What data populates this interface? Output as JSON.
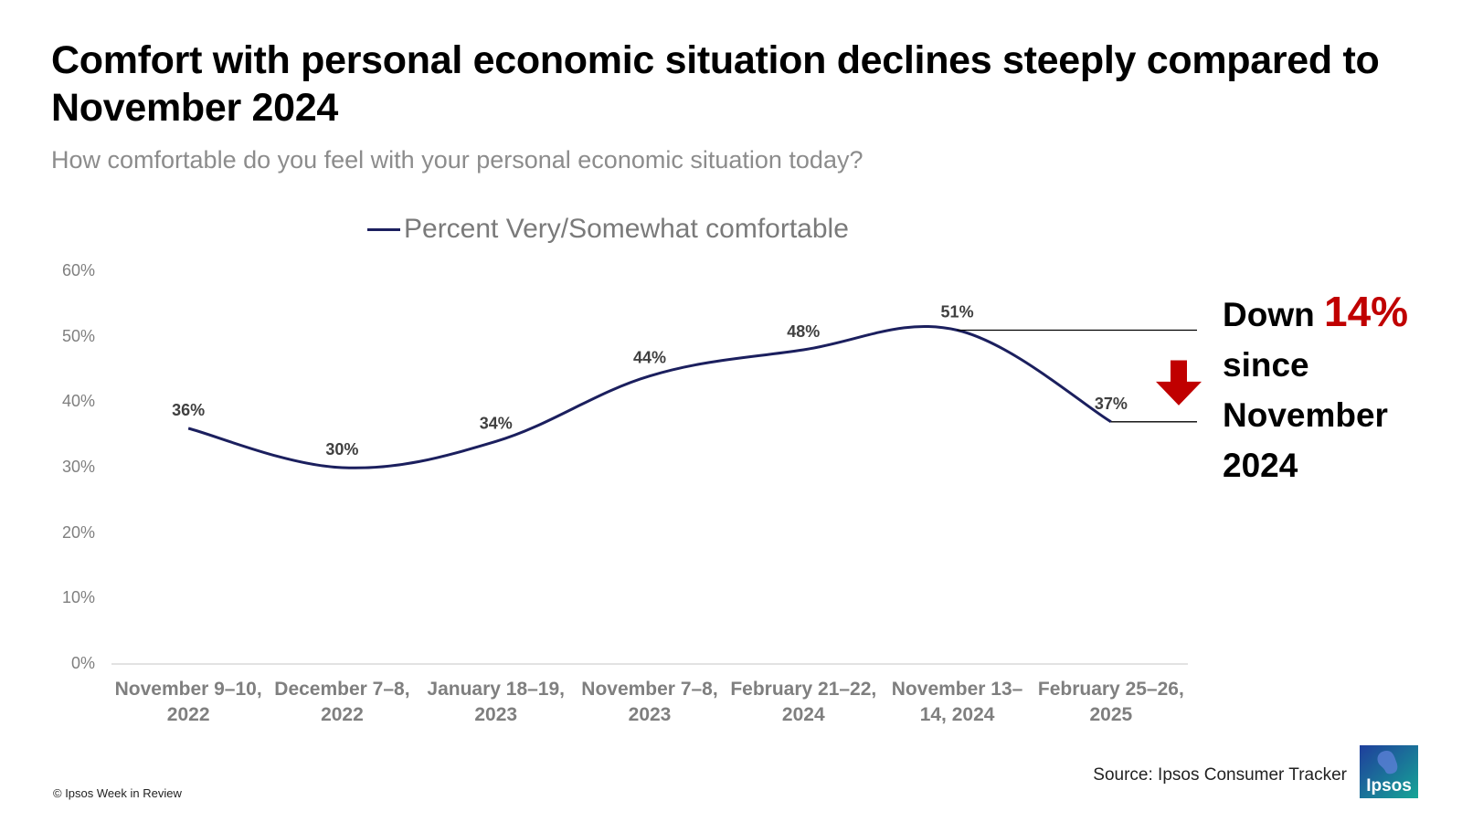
{
  "title": "Comfort with personal economic situation declines steeply compared to November 2024",
  "subtitle": "How comfortable do you feel with your personal economic situation today?",
  "callout": {
    "down": "Down",
    "pct": "14%",
    "since": "since",
    "month": "November",
    "year": "2024"
  },
  "source": "Source: Ipsos Consumer Tracker",
  "copyright": "© Ipsos Week in Review",
  "logo_text": "Ipsos",
  "colors": {
    "line": "#1b1f5e",
    "callout_accent": "#c00000",
    "logo_blue": "#1f3e9c",
    "logo_teal": "#16a596"
  },
  "chart_data": {
    "type": "line",
    "categories": [
      [
        "November 9–10,",
        "2022"
      ],
      [
        "December 7–8,",
        "2022"
      ],
      [
        "January 18–19,",
        "2023"
      ],
      [
        "November 7–8,",
        "2023"
      ],
      [
        "February 21–22,",
        "2024"
      ],
      [
        "November 13–",
        "14, 2024"
      ],
      [
        "February 25–26,",
        "2025"
      ]
    ],
    "series": [
      {
        "name": "Percent Very/Somewhat comfortable",
        "values": [
          36,
          30,
          34,
          44,
          48,
          51,
          37
        ],
        "labels": [
          "36%",
          "30%",
          "34%",
          "44%",
          "48%",
          "51%",
          "37%"
        ]
      }
    ],
    "y_ticks": [
      "0%",
      "10%",
      "20%",
      "30%",
      "40%",
      "50%",
      "60%"
    ],
    "ylim": [
      0,
      60
    ],
    "grid": false,
    "legend_position": "top"
  }
}
